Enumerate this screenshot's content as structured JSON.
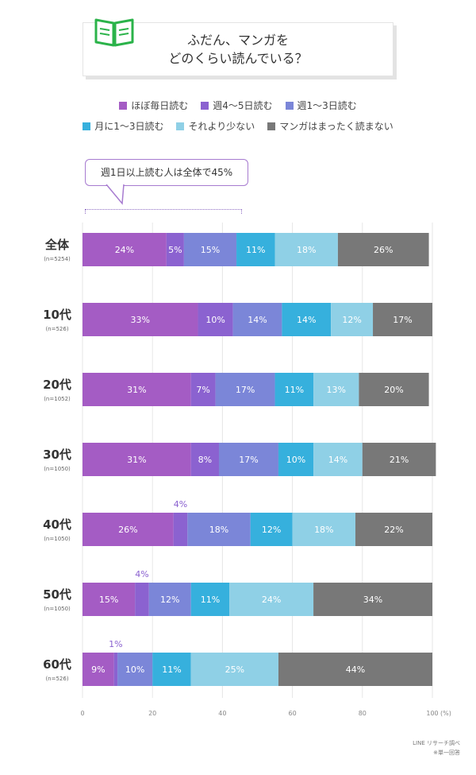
{
  "title_lines": [
    "ふだん、マンガを",
    "どのくらい読んでいる？"
  ],
  "callout_text": "週1日以上読む人は全体で45%",
  "footnote_lines": [
    "LINE リサーチ調べ",
    "※単一回答"
  ],
  "chart_data": {
    "type": "bar",
    "orientation": "horizontal",
    "stacked": true,
    "categories": [
      "全体",
      "10代",
      "20代",
      "30代",
      "40代",
      "50代",
      "60代"
    ],
    "category_notes": [
      "(n=5254)",
      "(n=526)",
      "(n=1052)",
      "(n=1050)",
      "(n=1050)",
      "(n=1050)",
      "(n=526)"
    ],
    "series": [
      {
        "name": "ほぼ毎日読む",
        "color": "#a45cc4",
        "values": [
          24,
          33,
          31,
          31,
          26,
          15,
          9
        ]
      },
      {
        "name": "週4～5日読む",
        "color": "#8b62d0",
        "values": [
          5,
          10,
          7,
          8,
          4,
          4,
          1
        ]
      },
      {
        "name": "週1～3日読む",
        "color": "#7b86d8",
        "values": [
          15,
          14,
          17,
          17,
          18,
          12,
          10
        ]
      },
      {
        "name": "月に1～3日読む",
        "color": "#36b0dd",
        "values": [
          11,
          14,
          11,
          10,
          12,
          11,
          11
        ]
      },
      {
        "name": "それより少ない",
        "color": "#8fd0e6",
        "values": [
          18,
          12,
          13,
          14,
          18,
          24,
          25
        ]
      },
      {
        "name": "マンガはまったく読まない",
        "color": "#787878",
        "values": [
          26,
          17,
          20,
          21,
          22,
          34,
          44
        ]
      }
    ],
    "value_suffix": "%",
    "xlim": [
      0,
      100
    ],
    "x_ticks": [
      0,
      20,
      40,
      60,
      80,
      100
    ],
    "x_unit_label": "(%)",
    "grid": true,
    "legend_position": "top"
  }
}
